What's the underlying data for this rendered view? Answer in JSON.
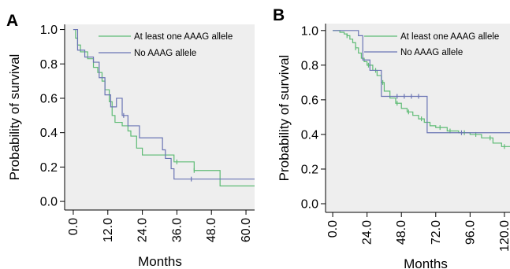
{
  "figure": {
    "panels": [
      {
        "letter": "A",
        "xlabel": "Months",
        "ylabel": "Probability of survival",
        "legend": [
          "At least one AAAG allele",
          "No AAAG allele"
        ]
      },
      {
        "letter": "B",
        "xlabel": "Months",
        "ylabel": "Probability of survival",
        "legend": [
          "At least one AAAG allele",
          "No AAAG allele"
        ]
      }
    ]
  },
  "chart_data": [
    {
      "type": "line",
      "title": "",
      "xlabel": "Months",
      "ylabel": "Probability of survival",
      "xlim": [
        -3,
        63
      ],
      "ylim": [
        -0.05,
        1.03
      ],
      "x_ticks": [
        "0.0",
        "12.0",
        "24.0",
        "36.0",
        "48.0",
        "60.0"
      ],
      "x_tick_values": [
        0,
        12,
        24,
        36,
        48,
        60
      ],
      "y_ticks": [
        "0.0",
        "0.2",
        "0.4",
        "0.6",
        "0.8",
        "1.0"
      ],
      "y_tick_values": [
        0,
        0.2,
        0.4,
        0.6,
        0.8,
        1.0
      ],
      "grid": false,
      "background": "#eeeeee",
      "legend_position": "top-right",
      "series": [
        {
          "name": "At least one AAAG allele",
          "color": "#5dbb74",
          "step_points": [
            [
              0,
              1.0
            ],
            [
              0.8,
              0.95
            ],
            [
              1.5,
              0.91
            ],
            [
              2.5,
              0.87
            ],
            [
              5,
              0.83
            ],
            [
              7,
              0.78
            ],
            [
              8.5,
              0.75
            ],
            [
              10,
              0.7
            ],
            [
              11,
              0.65
            ],
            [
              12.5,
              0.58
            ],
            [
              13.5,
              0.5
            ],
            [
              14.5,
              0.46
            ],
            [
              17,
              0.44
            ],
            [
              19,
              0.41
            ],
            [
              20,
              0.38
            ],
            [
              22,
              0.31
            ],
            [
              24,
              0.27
            ],
            [
              35,
              0.23
            ],
            [
              42,
              0.18
            ],
            [
              51,
              0.09
            ],
            [
              63,
              0.09
            ]
          ],
          "censor_marks": [
            [
              36,
              0.23
            ],
            [
              42,
              0.18
            ]
          ]
        },
        {
          "name": "No AAAG allele",
          "color": "#6a74b4",
          "step_points": [
            [
              0,
              1.0
            ],
            [
              1.5,
              0.88
            ],
            [
              4,
              0.84
            ],
            [
              7,
              0.81
            ],
            [
              9,
              0.72
            ],
            [
              11,
              0.62
            ],
            [
              13,
              0.55
            ],
            [
              15,
              0.6
            ],
            [
              17,
              0.5
            ],
            [
              19,
              0.44
            ],
            [
              23,
              0.37
            ],
            [
              31,
              0.3
            ],
            [
              32,
              0.25
            ],
            [
              34,
              0.19
            ],
            [
              35,
              0.13
            ],
            [
              42,
              0.13
            ],
            [
              48,
              0.13
            ],
            [
              63,
              0.13
            ]
          ],
          "censor_marks": [
            [
              17.5,
              0.5
            ],
            [
              41,
              0.13
            ]
          ]
        }
      ]
    },
    {
      "type": "line",
      "title": "",
      "xlabel": "Months",
      "ylabel": "Probability of survival",
      "xlim": [
        -5,
        125
      ],
      "ylim": [
        -0.05,
        1.04
      ],
      "x_ticks": [
        "0.0",
        "24.0",
        "48.0",
        "72.0",
        "96.0",
        "120.0"
      ],
      "x_tick_values": [
        0,
        24,
        48,
        72,
        96,
        120
      ],
      "y_ticks": [
        "0.0",
        "0.2",
        "0.4",
        "0.6",
        "0.8",
        "1.0"
      ],
      "y_tick_values": [
        0,
        0.2,
        0.4,
        0.6,
        0.8,
        1.0
      ],
      "grid": false,
      "background": "#eeeeee",
      "legend_position": "top-right",
      "series": [
        {
          "name": "At least one AAAG allele",
          "color": "#5dbb74",
          "step_points": [
            [
              0,
              1.0
            ],
            [
              5,
              0.99
            ],
            [
              8,
              0.98
            ],
            [
              10,
              0.97
            ],
            [
              12,
              0.95
            ],
            [
              14,
              0.93
            ],
            [
              16,
              0.9
            ],
            [
              18,
              0.87
            ],
            [
              20,
              0.84
            ],
            [
              22,
              0.82
            ],
            [
              24,
              0.8
            ],
            [
              28,
              0.77
            ],
            [
              31,
              0.74
            ],
            [
              34,
              0.7
            ],
            [
              36,
              0.65
            ],
            [
              40,
              0.61
            ],
            [
              44,
              0.58
            ],
            [
              48,
              0.55
            ],
            [
              52,
              0.53
            ],
            [
              56,
              0.51
            ],
            [
              60,
              0.49
            ],
            [
              64,
              0.47
            ],
            [
              68,
              0.45
            ],
            [
              72,
              0.44
            ],
            [
              80,
              0.42
            ],
            [
              88,
              0.41
            ],
            [
              96,
              0.4
            ],
            [
              104,
              0.38
            ],
            [
              112,
              0.35
            ],
            [
              118,
              0.33
            ],
            [
              125,
              0.33
            ]
          ],
          "censor_marks": [
            [
              10,
              0.97
            ],
            [
              16,
              0.9
            ],
            [
              25,
              0.8
            ],
            [
              30,
              0.77
            ],
            [
              35,
              0.7
            ],
            [
              45,
              0.58
            ],
            [
              53,
              0.53
            ],
            [
              62,
              0.49
            ],
            [
              75,
              0.44
            ],
            [
              82,
              0.42
            ],
            [
              92,
              0.41
            ],
            [
              100,
              0.4
            ],
            [
              110,
              0.38
            ],
            [
              120,
              0.33
            ]
          ]
        },
        {
          "name": "No AAAG allele",
          "color": "#6a74b4",
          "step_points": [
            [
              0,
              1.0
            ],
            [
              18,
              0.97
            ],
            [
              21,
              0.83
            ],
            [
              26,
              0.77
            ],
            [
              34,
              0.62
            ],
            [
              66,
              0.41
            ],
            [
              125,
              0.41
            ]
          ],
          "censor_marks": [
            [
              45,
              0.62
            ],
            [
              50,
              0.62
            ],
            [
              55,
              0.62
            ],
            [
              60,
              0.62
            ],
            [
              90,
              0.41
            ]
          ]
        }
      ]
    }
  ]
}
